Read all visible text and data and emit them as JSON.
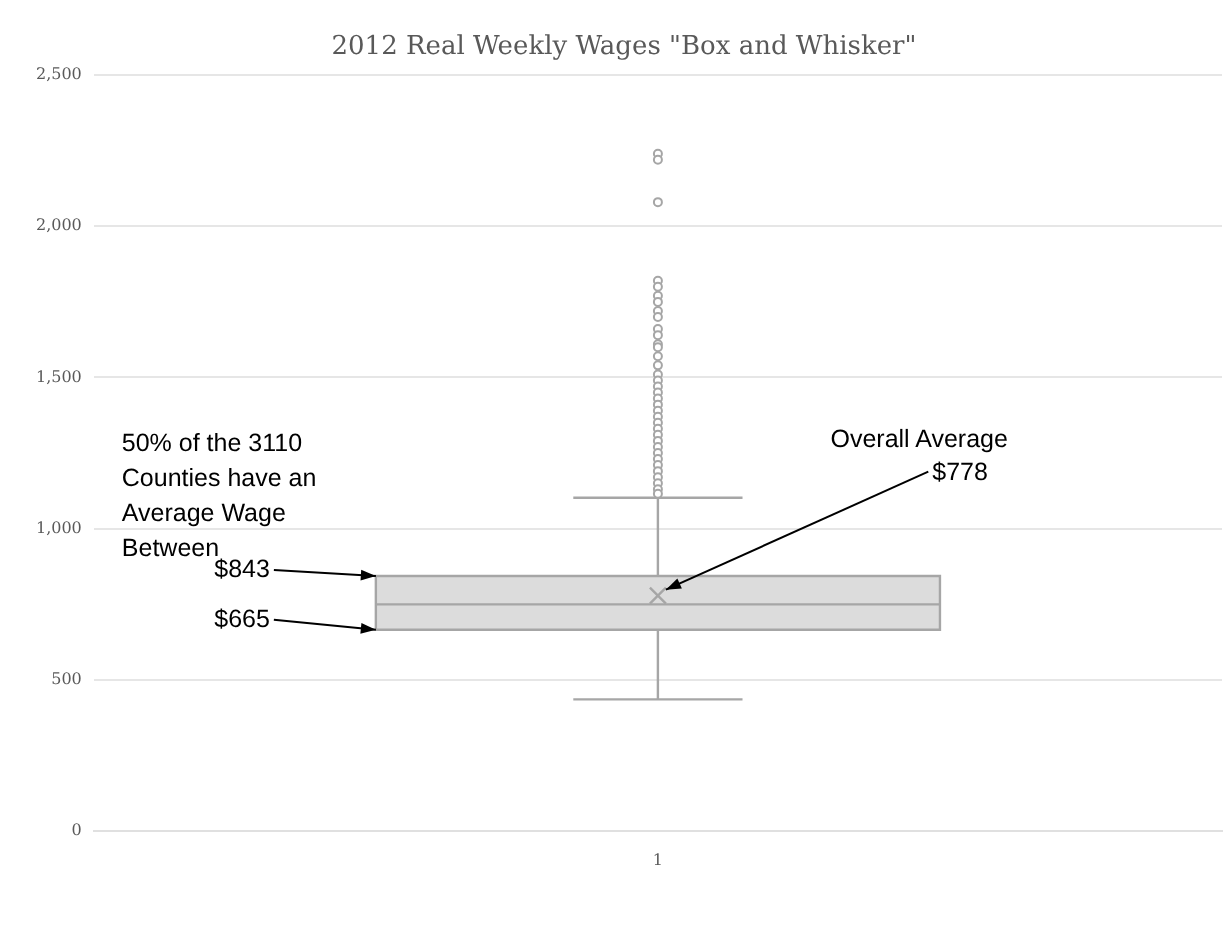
{
  "chart_data": {
    "type": "box",
    "title": "2012 Real Weekly Wages \"Box and Whisker\"",
    "categories": [
      "1"
    ],
    "boxes": [
      {
        "low": 435,
        "q1": 665,
        "median": 749,
        "q3": 843,
        "high": 1102,
        "mean": 778,
        "outliers": [
          2240,
          2220,
          2080,
          1820,
          1800,
          1770,
          1750,
          1720,
          1700,
          1660,
          1640,
          1610,
          1600,
          1570,
          1540,
          1510,
          1490,
          1470,
          1450,
          1430,
          1410,
          1390,
          1370,
          1350,
          1330,
          1310,
          1290,
          1270,
          1250,
          1230,
          1210,
          1190,
          1170,
          1150,
          1130,
          1115
        ]
      }
    ],
    "color": "#dcdcdc",
    "ylim": [
      0,
      2500
    ],
    "yticks": [
      {
        "value": 0,
        "label": "0"
      },
      {
        "value": 500,
        "label": "500"
      },
      {
        "value": 1000,
        "label": "1,000"
      },
      {
        "value": 1500,
        "label": "1,500"
      },
      {
        "value": 2000,
        "label": "2,000"
      },
      {
        "value": 2500,
        "label": "2,500"
      }
    ],
    "grid": "y",
    "legend": false,
    "marker": "circle",
    "annotations": [
      "50% of the 3110 Counties have an Average Wage Between",
      "$843",
      "$665",
      {
        "text": "Overall Average\n$778",
        "x": "1",
        "y": 778
      }
    ]
  }
}
